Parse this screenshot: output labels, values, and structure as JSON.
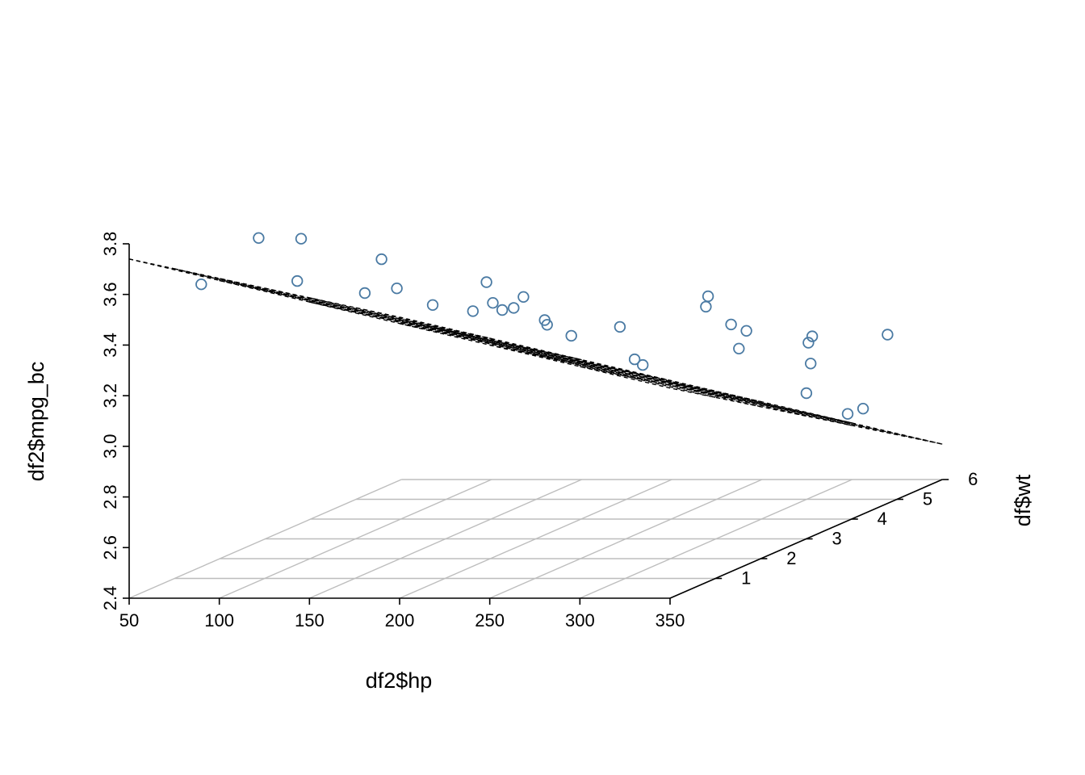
{
  "chart_data": {
    "type": "scatter3d",
    "title": "",
    "xlabel": "df2$hp",
    "ylabel": "df$wt",
    "zlabel": "df2$mpg_bc",
    "xlim": [
      50,
      350
    ],
    "ylim": [
      0,
      6
    ],
    "zlim": [
      2.4,
      3.8
    ],
    "x_ticks": [
      "50",
      "100",
      "150",
      "200",
      "250",
      "300",
      "350"
    ],
    "y_ticks": [
      "1",
      "2",
      "3",
      "4",
      "5",
      "6"
    ],
    "z_ticks": [
      "2.4",
      "2.6",
      "2.8",
      "3.0",
      "3.2",
      "3.4",
      "3.6",
      "3.8"
    ],
    "grid": "base plane",
    "point_color": "#4a7aa3",
    "plane_color": "#cccccc",
    "grid_color": "#bdbdbd",
    "fitted_plane": {
      "corners": [
        {
          "x": 50,
          "y": 0,
          "z": 3.74
        },
        {
          "x": 350,
          "y": 0,
          "z": 3.23
        },
        {
          "x": 350,
          "y": 6,
          "z": 2.54
        },
        {
          "x": 50,
          "y": 6,
          "z": 3.04
        }
      ],
      "line_style": "dashed"
    },
    "points": [
      {
        "x": 90,
        "y": 0.0,
        "z": 3.64
      },
      {
        "x": 108,
        "y": 0.55,
        "z": 3.78
      },
      {
        "x": 126,
        "y": 0.77,
        "z": 3.76
      },
      {
        "x": 110,
        "y": 1.32,
        "z": 3.55
      },
      {
        "x": 158,
        "y": 1.27,
        "z": 3.64
      },
      {
        "x": 150,
        "y": 1.22,
        "z": 3.51
      },
      {
        "x": 165,
        "y": 1.33,
        "z": 3.52
      },
      {
        "x": 161,
        "y": 2.28,
        "z": 3.38
      },
      {
        "x": 175,
        "y": 2.61,
        "z": 3.33
      },
      {
        "x": 181,
        "y": 2.67,
        "z": 3.44
      },
      {
        "x": 182,
        "y": 2.77,
        "z": 3.35
      },
      {
        "x": 193,
        "y": 2.54,
        "z": 3.34
      },
      {
        "x": 201,
        "y": 2.69,
        "z": 3.38
      },
      {
        "x": 187,
        "y": 3.03,
        "z": 3.31
      },
      {
        "x": 210,
        "y": 2.8,
        "z": 3.28
      },
      {
        "x": 198,
        "y": 3.33,
        "z": 3.22
      },
      {
        "x": 219,
        "y": 3.03,
        "z": 3.2
      },
      {
        "x": 254,
        "y": 2.71,
        "z": 3.26
      },
      {
        "x": 239,
        "y": 3.63,
        "z": 3.06
      },
      {
        "x": 241,
        "y": 3.73,
        "z": 3.03
      },
      {
        "x": 276,
        "y": 3.73,
        "z": 3.26
      },
      {
        "x": 280,
        "y": 3.62,
        "z": 3.31
      },
      {
        "x": 290,
        "y": 3.73,
        "z": 3.19
      },
      {
        "x": 297,
        "y": 3.79,
        "z": 3.16
      },
      {
        "x": 280,
        "y": 4.3,
        "z": 3.05
      },
      {
        "x": 334,
        "y": 3.77,
        "z": 3.14
      },
      {
        "x": 311,
        "y": 4.6,
        "z": 3.05
      },
      {
        "x": 313,
        "y": 4.57,
        "z": 2.97
      },
      {
        "x": 329,
        "y": 3.84,
        "z": 2.91
      },
      {
        "x": 330,
        "y": 4.71,
        "z": 2.76
      },
      {
        "x": 335,
        "y": 4.85,
        "z": 2.77
      },
      {
        "x": 335,
        "y": 5.39,
        "z": 3.02
      }
    ]
  }
}
